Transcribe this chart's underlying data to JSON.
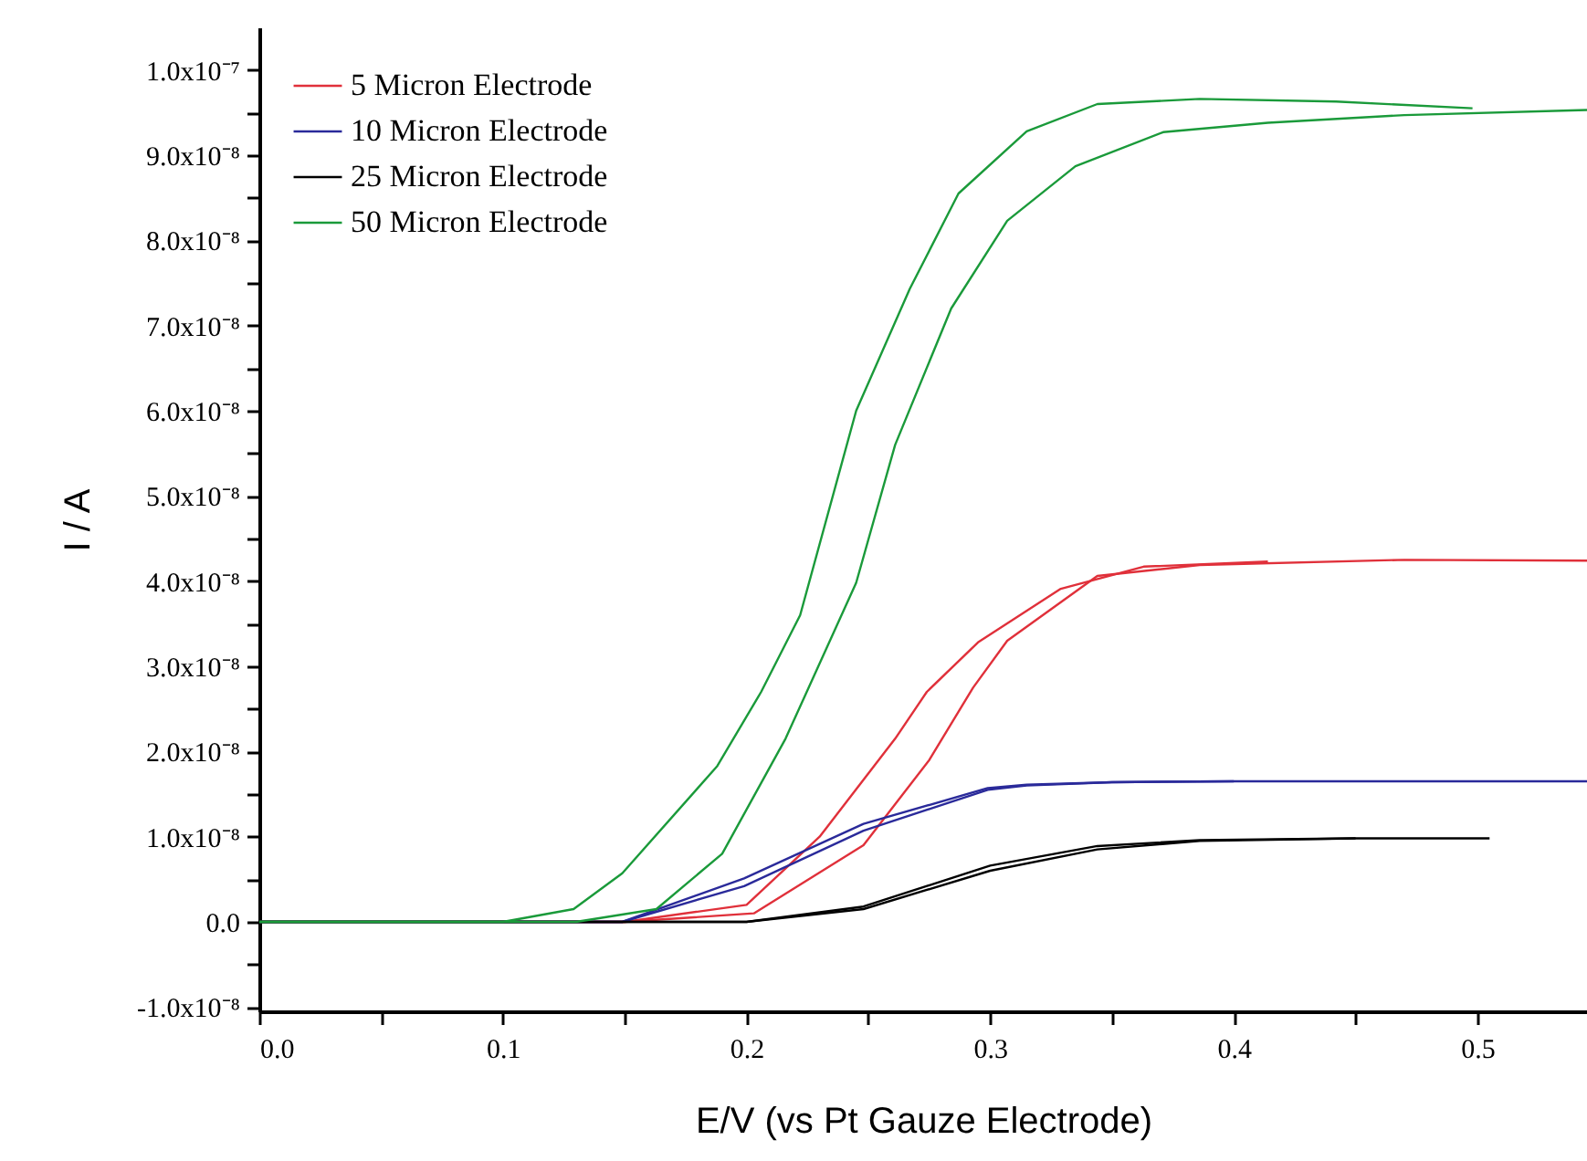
{
  "chart_data": {
    "type": "line",
    "xlabel": "E/V (vs Pt Gauze Electrode)",
    "ylabel": "I / A",
    "xlim": [
      0,
      0.545
    ],
    "ylim": [
      -1.05e-08,
      1.05e-07
    ],
    "xticks": [
      {
        "value": 0,
        "label": "0.0"
      },
      {
        "value": 0.05,
        "label": null
      },
      0.1,
      {
        "value": 0.15,
        "label": null
      },
      0.2,
      {
        "value": 0.25,
        "label": null
      },
      0.3,
      {
        "value": 0.35,
        "label": null
      },
      0.4,
      {
        "value": 0.45,
        "label": null
      },
      0.5
    ],
    "yticks": [
      {
        "value": -1e-08,
        "label": "-1.0x10⁻⁸"
      },
      {
        "value": -5e-09,
        "label": null
      },
      {
        "value": 0,
        "label": "0.0"
      },
      {
        "value": 5e-09,
        "label": null
      },
      {
        "value": 1e-08,
        "label": "1.0x10⁻⁸"
      },
      {
        "value": 1.5e-08,
        "label": null
      },
      {
        "value": 2e-08,
        "label": "2.0x10⁻⁸"
      },
      {
        "value": 2.5e-08,
        "label": null
      },
      {
        "value": 3e-08,
        "label": "3.0x10⁻⁸"
      },
      {
        "value": 3.5e-08,
        "label": null
      },
      {
        "value": 4e-08,
        "label": "4.0x10⁻⁸"
      },
      {
        "value": 4.5e-08,
        "label": null
      },
      {
        "value": 5e-08,
        "label": "5.0x10⁻⁸"
      },
      {
        "value": 5.5e-08,
        "label": null
      },
      {
        "value": 6e-08,
        "label": "6.0x10⁻⁸"
      },
      {
        "value": 6.5e-08,
        "label": null
      },
      {
        "value": 7e-08,
        "label": "7.0x10⁻⁸"
      },
      {
        "value": 7.5e-08,
        "label": null
      },
      {
        "value": 8e-08,
        "label": "8.0x10⁻⁸"
      },
      {
        "value": 8.5e-08,
        "label": null
      },
      {
        "value": 9e-08,
        "label": "9.0x10⁻⁸"
      },
      {
        "value": 9.5e-08,
        "label": null
      },
      {
        "value": 1e-07,
        "label": "1.0x10⁻⁷"
      }
    ],
    "grid": false,
    "legend": "top left",
    "marker": "none",
    "line_style": "solid",
    "series": [
      {
        "name": "5 Micron Electrode",
        "color": "#e0303a",
        "x": [
          0,
          0.1,
          0.15,
          0.203,
          0.248,
          0.275,
          0.293,
          0.307,
          0.344,
          0.386,
          0.47,
          0.545
        ],
        "values": [
          0,
          0,
          0,
          1e-09,
          9e-09,
          1.9e-08,
          2.75e-08,
          3.3e-08,
          4.06e-08,
          4.19e-08,
          4.25e-08,
          4.24e-08
        ]
      },
      {
        "color": "#e0303a",
        "x": [
          0,
          0.1,
          0.15,
          0.2,
          0.23,
          0.261,
          0.274,
          0.295,
          0.329,
          0.363,
          0.414
        ],
        "values": [
          0,
          0,
          0,
          2e-09,
          1e-08,
          2.15e-08,
          2.7e-08,
          3.28e-08,
          3.91e-08,
          4.17e-08,
          4.23e-08
        ]
      },
      {
        "name": "10 Micron Electrode",
        "color": "#2a2a9a",
        "x": [
          0,
          0.1,
          0.149,
          0.199,
          0.248,
          0.299,
          0.315,
          0.35,
          0.4,
          0.545
        ],
        "values": [
          0,
          0,
          0,
          4.2e-09,
          1.07e-08,
          1.55e-08,
          1.6e-08,
          1.64e-08,
          1.65e-08,
          1.65e-08
        ]
      },
      {
        "color": "#2a2a9a",
        "x": [
          0,
          0.1,
          0.149,
          0.199,
          0.248,
          0.299,
          0.315,
          0.35,
          0.4
        ],
        "values": [
          0,
          0,
          0,
          5.1e-09,
          1.15e-08,
          1.57e-08,
          1.61e-08,
          1.64e-08,
          1.65e-08
        ]
      },
      {
        "name": "25 Micron Electrode",
        "color": "#000000",
        "x": [
          0,
          0.15,
          0.2,
          0.248,
          0.3,
          0.344,
          0.386,
          0.45,
          0.505
        ],
        "values": [
          0,
          0,
          0,
          1.5e-09,
          6e-09,
          8.5e-09,
          9.5e-09,
          9.8e-09,
          9.8e-09
        ]
      },
      {
        "color": "#000000",
        "x": [
          0,
          0.15,
          0.2,
          0.248,
          0.3,
          0.344,
          0.386,
          0.45
        ],
        "values": [
          0,
          0,
          0,
          1.8e-09,
          6.6e-09,
          8.9e-09,
          9.6e-09,
          9.8e-09
        ]
      },
      {
        "name": "50 Micron Electrode",
        "color": "#1a9a3a",
        "x": [
          0,
          0.05,
          0.1,
          0.13,
          0.163,
          0.19,
          0.216,
          0.245,
          0.261,
          0.284,
          0.307,
          0.335,
          0.371,
          0.414,
          0.47,
          0.545
        ],
        "values": [
          0,
          0,
          0,
          0,
          1.5e-09,
          8e-09,
          2.15e-08,
          3.98e-08,
          5.6e-08,
          7.2e-08,
          8.23e-08,
          8.87e-08,
          9.27e-08,
          9.38e-08,
          9.47e-08,
          9.53e-08
        ]
      },
      {
        "color": "#1a9a3a",
        "x": [
          0,
          0.05,
          0.1,
          0.129,
          0.149,
          0.188,
          0.206,
          0.222,
          0.245,
          0.267,
          0.287,
          0.315,
          0.344,
          0.386,
          0.442,
          0.498
        ],
        "values": [
          0,
          0,
          0,
          1.5e-09,
          5.7e-09,
          1.83e-08,
          2.7e-08,
          3.6e-08,
          6e-08,
          7.43e-08,
          8.55e-08,
          9.28e-08,
          9.6e-08,
          9.66e-08,
          9.63e-08,
          9.55e-08
        ]
      }
    ]
  }
}
